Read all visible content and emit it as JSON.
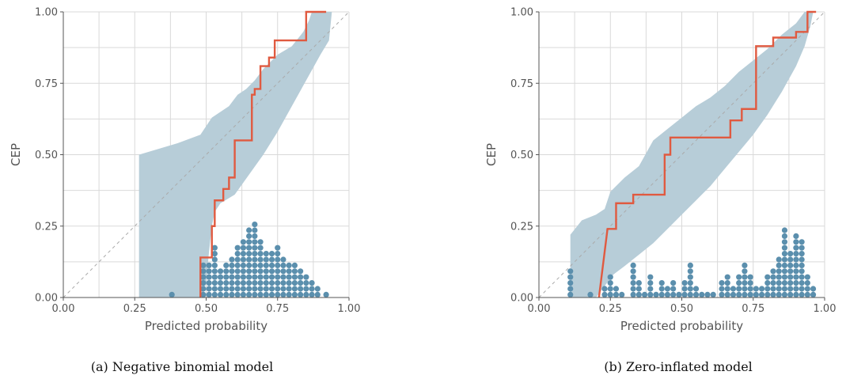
{
  "colors": {
    "band": "#b7cdd8",
    "cep_line": "#e05a40",
    "dots": "#5b8fad",
    "grid": "#d9d9d9",
    "diagonal": "#aaaaaa",
    "axis": "#555555"
  },
  "chart_data": [
    {
      "type": "line",
      "caption": "(a) Negative binomial model",
      "xlabel": "Predicted probability",
      "ylabel": "CEP",
      "xlim": [
        0,
        1
      ],
      "ylim": [
        0,
        1
      ],
      "xticks": [
        "0.00",
        "0.25",
        "0.50",
        "0.75",
        "1.00"
      ],
      "yticks": [
        "0.00",
        "0.25",
        "0.50",
        "0.75",
        "1.00"
      ],
      "grid": true,
      "diagonal": true,
      "band_lower": [
        [
          0.265,
          0
        ],
        [
          0.48,
          0
        ],
        [
          0.5,
          0.05
        ],
        [
          0.51,
          0.16
        ],
        [
          0.52,
          0.25
        ],
        [
          0.53,
          0.3
        ],
        [
          0.55,
          0.33
        ],
        [
          0.6,
          0.36
        ],
        [
          0.65,
          0.43
        ],
        [
          0.7,
          0.5
        ],
        [
          0.75,
          0.58
        ],
        [
          0.8,
          0.67
        ],
        [
          0.85,
          0.76
        ],
        [
          0.9,
          0.85
        ],
        [
          0.93,
          0.9
        ],
        [
          0.94,
          1
        ]
      ],
      "band_upper": [
        [
          0.265,
          0.5
        ],
        [
          0.4,
          0.54
        ],
        [
          0.48,
          0.57
        ],
        [
          0.5,
          0.6
        ],
        [
          0.52,
          0.63
        ],
        [
          0.55,
          0.65
        ],
        [
          0.58,
          0.67
        ],
        [
          0.61,
          0.71
        ],
        [
          0.64,
          0.73
        ],
        [
          0.67,
          0.76
        ],
        [
          0.7,
          0.8
        ],
        [
          0.75,
          0.85
        ],
        [
          0.8,
          0.88
        ],
        [
          0.84,
          0.93
        ],
        [
          0.86,
          0.97
        ],
        [
          0.87,
          1
        ]
      ],
      "cep_step": [
        [
          0.48,
          0
        ],
        [
          0.48,
          0.14
        ],
        [
          0.52,
          0.14
        ],
        [
          0.52,
          0.25
        ],
        [
          0.53,
          0.25
        ],
        [
          0.53,
          0.34
        ],
        [
          0.56,
          0.34
        ],
        [
          0.56,
          0.38
        ],
        [
          0.58,
          0.38
        ],
        [
          0.58,
          0.42
        ],
        [
          0.6,
          0.42
        ],
        [
          0.6,
          0.55
        ],
        [
          0.66,
          0.55
        ],
        [
          0.66,
          0.71
        ],
        [
          0.67,
          0.71
        ],
        [
          0.67,
          0.73
        ],
        [
          0.69,
          0.73
        ],
        [
          0.69,
          0.81
        ],
        [
          0.72,
          0.81
        ],
        [
          0.72,
          0.84
        ],
        [
          0.74,
          0.84
        ],
        [
          0.74,
          0.9
        ],
        [
          0.85,
          0.9
        ],
        [
          0.85,
          1
        ],
        [
          0.92,
          1
        ]
      ],
      "dot_columns": [
        [
          0.38,
          1
        ],
        [
          0.49,
          6
        ],
        [
          0.51,
          6
        ],
        [
          0.53,
          9
        ],
        [
          0.55,
          5
        ],
        [
          0.57,
          6
        ],
        [
          0.59,
          7
        ],
        [
          0.61,
          9
        ],
        [
          0.63,
          10
        ],
        [
          0.65,
          12
        ],
        [
          0.67,
          13
        ],
        [
          0.69,
          10
        ],
        [
          0.71,
          8
        ],
        [
          0.73,
          8
        ],
        [
          0.75,
          9
        ],
        [
          0.77,
          7
        ],
        [
          0.79,
          6
        ],
        [
          0.81,
          6
        ],
        [
          0.83,
          5
        ],
        [
          0.85,
          4
        ],
        [
          0.87,
          3
        ],
        [
          0.89,
          2
        ],
        [
          0.92,
          1
        ]
      ]
    },
    {
      "type": "line",
      "caption": "(b) Zero-inflated model",
      "xlabel": "Predicted probability",
      "ylabel": "CEP",
      "xlim": [
        0,
        1
      ],
      "ylim": [
        0,
        1
      ],
      "xticks": [
        "0.00",
        "0.25",
        "0.50",
        "0.75",
        "1.00"
      ],
      "yticks": [
        "0.00",
        "0.25",
        "0.50",
        "0.75",
        "1.00"
      ],
      "grid": true,
      "diagonal": true,
      "band_lower": [
        [
          0.11,
          0
        ],
        [
          0.2,
          0
        ],
        [
          0.23,
          0.04
        ],
        [
          0.26,
          0.08
        ],
        [
          0.3,
          0.11
        ],
        [
          0.35,
          0.15
        ],
        [
          0.4,
          0.19
        ],
        [
          0.45,
          0.24
        ],
        [
          0.5,
          0.29
        ],
        [
          0.55,
          0.34
        ],
        [
          0.6,
          0.39
        ],
        [
          0.65,
          0.45
        ],
        [
          0.7,
          0.51
        ],
        [
          0.75,
          0.57
        ],
        [
          0.8,
          0.64
        ],
        [
          0.85,
          0.72
        ],
        [
          0.9,
          0.81
        ],
        [
          0.93,
          0.88
        ],
        [
          0.95,
          0.95
        ],
        [
          0.96,
          1
        ]
      ],
      "band_upper": [
        [
          0.11,
          0.22
        ],
        [
          0.15,
          0.27
        ],
        [
          0.2,
          0.29
        ],
        [
          0.23,
          0.31
        ],
        [
          0.25,
          0.37
        ],
        [
          0.3,
          0.42
        ],
        [
          0.35,
          0.46
        ],
        [
          0.4,
          0.55
        ],
        [
          0.45,
          0.59
        ],
        [
          0.5,
          0.63
        ],
        [
          0.55,
          0.67
        ],
        [
          0.6,
          0.7
        ],
        [
          0.65,
          0.74
        ],
        [
          0.7,
          0.79
        ],
        [
          0.75,
          0.83
        ],
        [
          0.8,
          0.87
        ],
        [
          0.85,
          0.92
        ],
        [
          0.9,
          0.96
        ],
        [
          0.93,
          1
        ]
      ],
      "cep_step": [
        [
          0.21,
          0
        ],
        [
          0.24,
          0.24
        ],
        [
          0.27,
          0.24
        ],
        [
          0.27,
          0.33
        ],
        [
          0.33,
          0.33
        ],
        [
          0.33,
          0.36
        ],
        [
          0.44,
          0.36
        ],
        [
          0.44,
          0.5
        ],
        [
          0.46,
          0.5
        ],
        [
          0.46,
          0.56
        ],
        [
          0.67,
          0.56
        ],
        [
          0.67,
          0.62
        ],
        [
          0.71,
          0.62
        ],
        [
          0.71,
          0.66
        ],
        [
          0.76,
          0.66
        ],
        [
          0.76,
          0.88
        ],
        [
          0.82,
          0.88
        ],
        [
          0.82,
          0.91
        ],
        [
          0.9,
          0.91
        ],
        [
          0.9,
          0.93
        ],
        [
          0.94,
          0.93
        ],
        [
          0.94,
          1
        ],
        [
          0.97,
          1
        ]
      ],
      "dot_columns": [
        [
          0.11,
          5
        ],
        [
          0.18,
          1
        ],
        [
          0.23,
          2
        ],
        [
          0.25,
          4
        ],
        [
          0.27,
          2
        ],
        [
          0.29,
          1
        ],
        [
          0.33,
          6
        ],
        [
          0.35,
          3
        ],
        [
          0.37,
          1
        ],
        [
          0.39,
          4
        ],
        [
          0.41,
          1
        ],
        [
          0.43,
          3
        ],
        [
          0.45,
          2
        ],
        [
          0.47,
          3
        ],
        [
          0.49,
          1
        ],
        [
          0.51,
          3
        ],
        [
          0.53,
          6
        ],
        [
          0.55,
          2
        ],
        [
          0.57,
          1
        ],
        [
          0.59,
          1
        ],
        [
          0.61,
          1
        ],
        [
          0.64,
          3
        ],
        [
          0.66,
          4
        ],
        [
          0.68,
          2
        ],
        [
          0.7,
          4
        ],
        [
          0.72,
          6
        ],
        [
          0.74,
          4
        ],
        [
          0.76,
          2
        ],
        [
          0.78,
          2
        ],
        [
          0.8,
          4
        ],
        [
          0.82,
          5
        ],
        [
          0.84,
          7
        ],
        [
          0.86,
          12
        ],
        [
          0.88,
          8
        ],
        [
          0.9,
          11
        ],
        [
          0.92,
          10
        ],
        [
          0.94,
          4
        ],
        [
          0.96,
          2
        ]
      ]
    }
  ]
}
